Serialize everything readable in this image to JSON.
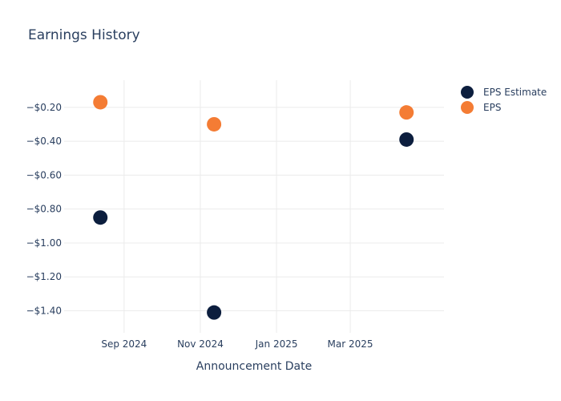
{
  "chart_data": {
    "type": "scatter",
    "title": "Earnings History",
    "xlabel": "Announcement Date",
    "ylabel": "",
    "x_ticks": [
      "Sep 2024",
      "Nov 2024",
      "Jan 2025",
      "Mar 2025"
    ],
    "x_tick_dates": [
      "2024-09-01",
      "2024-11-01",
      "2025-01-01",
      "2025-03-01"
    ],
    "xlim": [
      "2024-07-15",
      "2025-05-15"
    ],
    "y_ticks": [
      -0.2,
      -0.4,
      -0.6,
      -0.8,
      -1.0,
      -1.2,
      -1.4
    ],
    "y_tick_labels": [
      "−$0.20",
      "−$0.40",
      "−$0.60",
      "−$0.80",
      "−$1.00",
      "−$1.20",
      "−$1.40"
    ],
    "ylim": [
      -1.53,
      -0.04
    ],
    "grid": true,
    "legend_position": "top-right",
    "series": [
      {
        "name": "EPS Estimate",
        "color": "#0c1e3e",
        "points": [
          {
            "x": "2024-08-13",
            "y": -0.85
          },
          {
            "x": "2024-11-12",
            "y": -1.41
          },
          {
            "x": "2025-04-15",
            "y": -0.39
          }
        ]
      },
      {
        "name": "EPS",
        "color": "#f47c34",
        "points": [
          {
            "x": "2024-08-13",
            "y": -0.17
          },
          {
            "x": "2024-11-12",
            "y": -0.3
          },
          {
            "x": "2025-04-15",
            "y": -0.23
          }
        ]
      }
    ]
  }
}
